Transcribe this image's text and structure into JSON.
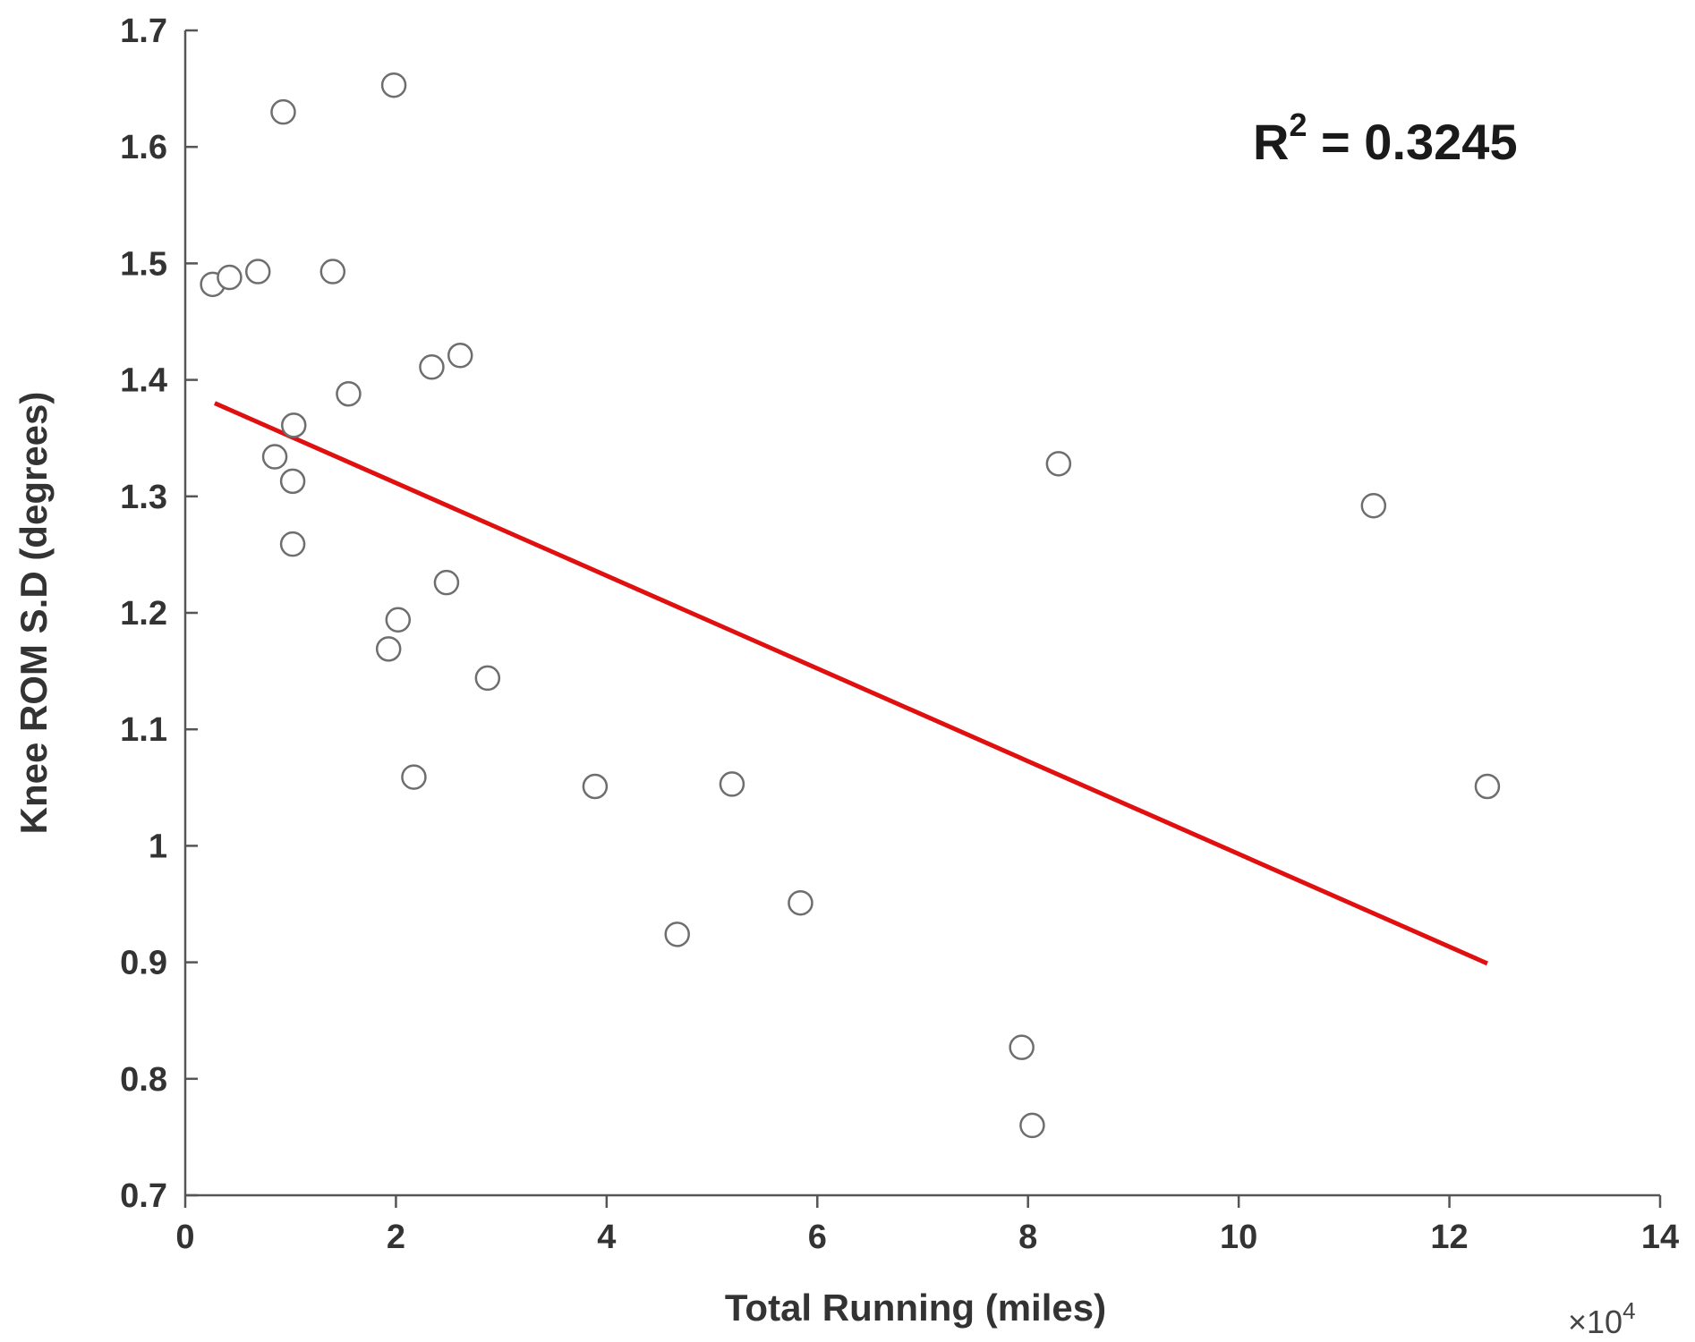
{
  "chart_data": {
    "type": "scatter",
    "xlabel": "Total Running (miles)",
    "ylabel": "Knee ROM S.D (degrees)",
    "x_multiplier_label": "×10",
    "x_multiplier_exponent": "4",
    "xlim": [
      0,
      14
    ],
    "ylim": [
      0.7,
      1.7
    ],
    "xticks": [
      0,
      2,
      4,
      6,
      8,
      10,
      12,
      14
    ],
    "yticks": [
      0.7,
      0.8,
      0.9,
      1,
      1.1,
      1.2,
      1.3,
      1.4,
      1.5,
      1.6,
      1.7
    ],
    "xtick_labels": [
      "0",
      "2",
      "4",
      "6",
      "8",
      "10",
      "12",
      "14"
    ],
    "ytick_labels": [
      "0.7",
      "0.8",
      "0.9",
      "1",
      "1.1",
      "1.2",
      "1.3",
      "1.4",
      "1.5",
      "1.6",
      "1.7"
    ],
    "grid": false,
    "points": [
      {
        "x": 0.26,
        "y": 1.482
      },
      {
        "x": 0.42,
        "y": 1.488
      },
      {
        "x": 0.69,
        "y": 1.493
      },
      {
        "x": 0.93,
        "y": 1.63
      },
      {
        "x": 1.98,
        "y": 1.653
      },
      {
        "x": 1.4,
        "y": 1.493
      },
      {
        "x": 2.34,
        "y": 1.411
      },
      {
        "x": 2.61,
        "y": 1.421
      },
      {
        "x": 1.55,
        "y": 1.388
      },
      {
        "x": 1.03,
        "y": 1.361
      },
      {
        "x": 0.85,
        "y": 1.334
      },
      {
        "x": 1.02,
        "y": 1.313
      },
      {
        "x": 1.02,
        "y": 1.259
      },
      {
        "x": 2.48,
        "y": 1.226
      },
      {
        "x": 2.02,
        "y": 1.194
      },
      {
        "x": 1.93,
        "y": 1.169
      },
      {
        "x": 2.87,
        "y": 1.144
      },
      {
        "x": 2.17,
        "y": 1.059
      },
      {
        "x": 3.89,
        "y": 1.051
      },
      {
        "x": 5.19,
        "y": 1.053
      },
      {
        "x": 4.67,
        "y": 0.924
      },
      {
        "x": 5.84,
        "y": 0.951
      },
      {
        "x": 8.29,
        "y": 1.328
      },
      {
        "x": 7.94,
        "y": 0.827
      },
      {
        "x": 8.04,
        "y": 0.76
      },
      {
        "x": 11.28,
        "y": 1.292
      },
      {
        "x": 12.36,
        "y": 1.051
      }
    ],
    "fit_line": {
      "x": [
        0.28,
        12.36
      ],
      "y": [
        1.38,
        0.899
      ],
      "color": "#e01010"
    },
    "annotation": {
      "text_prefix": "R",
      "text_superscript": "2",
      "text_suffix": " = 0.3245"
    },
    "point_style": {
      "marker": "open-circle",
      "stroke_color": "#6e6e6e"
    }
  }
}
